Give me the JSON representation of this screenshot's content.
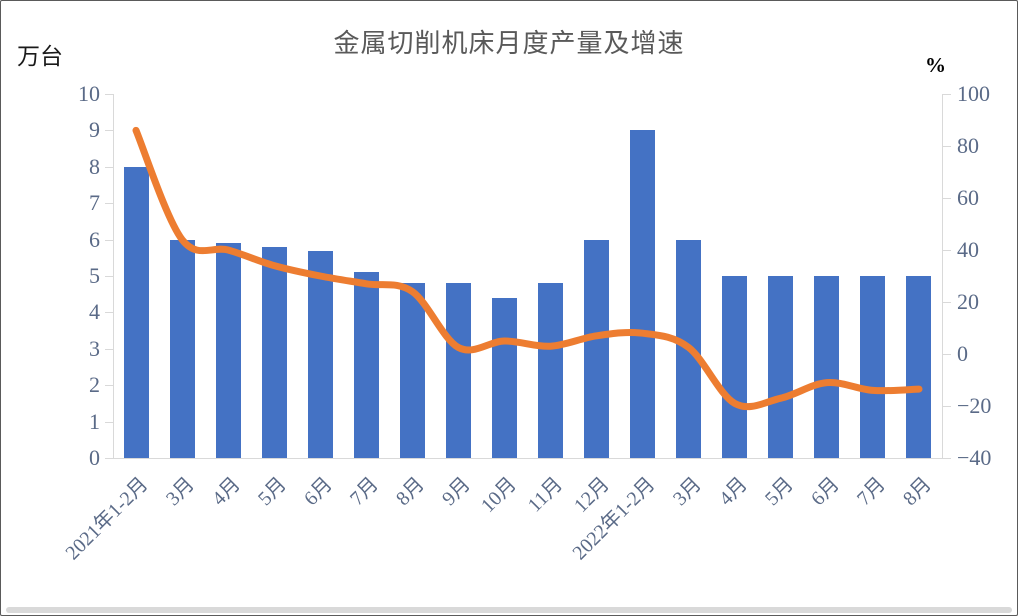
{
  "title": "金属切削机床月度产量及增速",
  "colors": {
    "bar": "#4472C4",
    "line": "#ED7D31",
    "axis": "#D9D9D9",
    "tick_label": "#5A6A87",
    "title_text": "#595959",
    "bottom_strip": "#D9D9D9"
  },
  "chart_data": {
    "type": "bar+line combo",
    "title": "金属切削机床月度产量及增速",
    "categories": [
      "2021年1-2月",
      "3月",
      "4月",
      "5月",
      "6月",
      "7月",
      "8月",
      "9月",
      "10月",
      "11月",
      "12月",
      "2022年1-2月",
      "3月",
      "4月",
      "5月",
      "6月",
      "7月",
      "8月"
    ],
    "bar_values_wantai": [
      8.0,
      6.0,
      5.9,
      5.8,
      5.7,
      5.1,
      4.8,
      4.8,
      4.4,
      4.8,
      6.0,
      9.0,
      6.0,
      5.0,
      5.0,
      5.0,
      5.0,
      5.0
    ],
    "line_values_percent": [
      86,
      44,
      40,
      34,
      30,
      27,
      24,
      2.5,
      5,
      3,
      7,
      8,
      2.5,
      -19,
      -17,
      -11,
      -14,
      -13.5
    ],
    "left_axis": {
      "label": "万台",
      "min": 0,
      "max": 10,
      "step": 1
    },
    "right_axis": {
      "label": "%",
      "min": -40,
      "max": 100,
      "step": 20
    },
    "grid": false,
    "legend": "none"
  }
}
